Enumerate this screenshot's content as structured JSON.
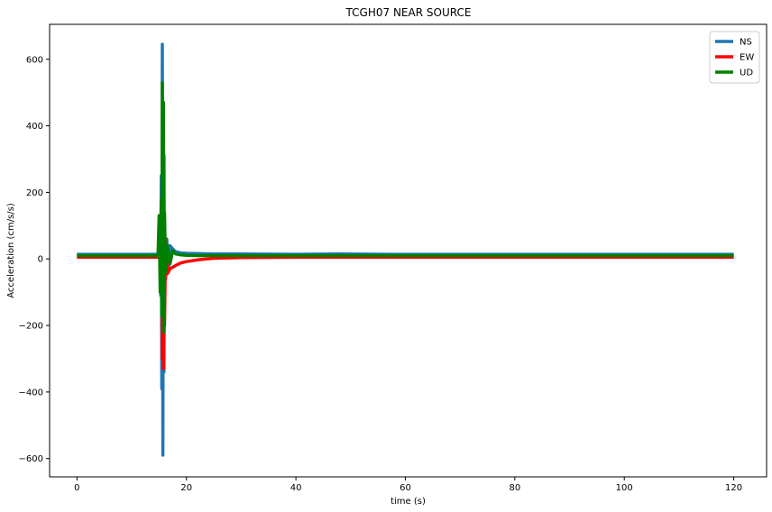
{
  "chart_data": {
    "type": "line",
    "title": "TCGH07 NEAR SOURCE",
    "xlabel": "time (s)",
    "ylabel": "Acceleration (cm/s/s)",
    "xlim": [
      -5,
      126
    ],
    "ylim": [
      -655,
      705
    ],
    "xticks": [
      0,
      20,
      40,
      60,
      80,
      100,
      120
    ],
    "yticks": [
      -600,
      -400,
      -200,
      0,
      200,
      400,
      600
    ],
    "grid": false,
    "legend_position": "top-right",
    "series": [
      {
        "name": "NS",
        "color": "#1f77b4",
        "baseline": 14,
        "x": [
          0,
          15.0,
          15.2,
          15.3,
          15.4,
          15.5,
          15.6,
          15.7,
          15.8,
          15.9,
          16.0,
          16.2,
          16.4,
          16.7,
          17.0,
          17.5,
          18.0,
          19.0,
          20.0,
          22.0,
          25.0,
          30.0,
          40.0,
          47.0,
          57.0,
          65.0,
          80.0,
          100.0,
          120.0
        ],
        "y": [
          14,
          14,
          130,
          -110,
          250,
          -390,
          645,
          -590,
          470,
          -340,
          120,
          -60,
          60,
          -40,
          40,
          30,
          22,
          18,
          17,
          16,
          15,
          15,
          14,
          15,
          14,
          14,
          14,
          14,
          14
        ]
      },
      {
        "name": "EW",
        "color": "#ff0000",
        "baseline": 5,
        "x": [
          0,
          15.0,
          15.2,
          15.4,
          15.5,
          15.6,
          15.7,
          15.8,
          15.9,
          16.0,
          16.2,
          16.5,
          17.0,
          17.5,
          18.0,
          19.0,
          20.0,
          22.0,
          25.0,
          30.0,
          40.0,
          60.0,
          80.0,
          100.0,
          120.0
        ],
        "y": [
          5,
          5,
          80,
          -60,
          150,
          -300,
          260,
          -330,
          310,
          -200,
          60,
          -45,
          -30,
          -25,
          -20,
          -12,
          -8,
          -3,
          2,
          4,
          5,
          5,
          5,
          5,
          5
        ]
      },
      {
        "name": "UD",
        "color": "#008000",
        "baseline": 10,
        "x": [
          0,
          14.8,
          15.0,
          15.2,
          15.4,
          15.5,
          15.6,
          15.7,
          15.8,
          15.9,
          16.0,
          16.2,
          16.5,
          17.0,
          17.5,
          18.0,
          19.0,
          20.0,
          22.0,
          25.0,
          30.0,
          40.0,
          60.0,
          80.0,
          100.0,
          120.0
        ],
        "y": [
          10,
          10,
          130,
          -100,
          180,
          -170,
          530,
          -170,
          470,
          -220,
          140,
          -40,
          40,
          -15,
          25,
          15,
          12,
          11,
          10,
          10,
          10,
          10,
          10,
          10,
          10,
          10
        ]
      }
    ]
  }
}
